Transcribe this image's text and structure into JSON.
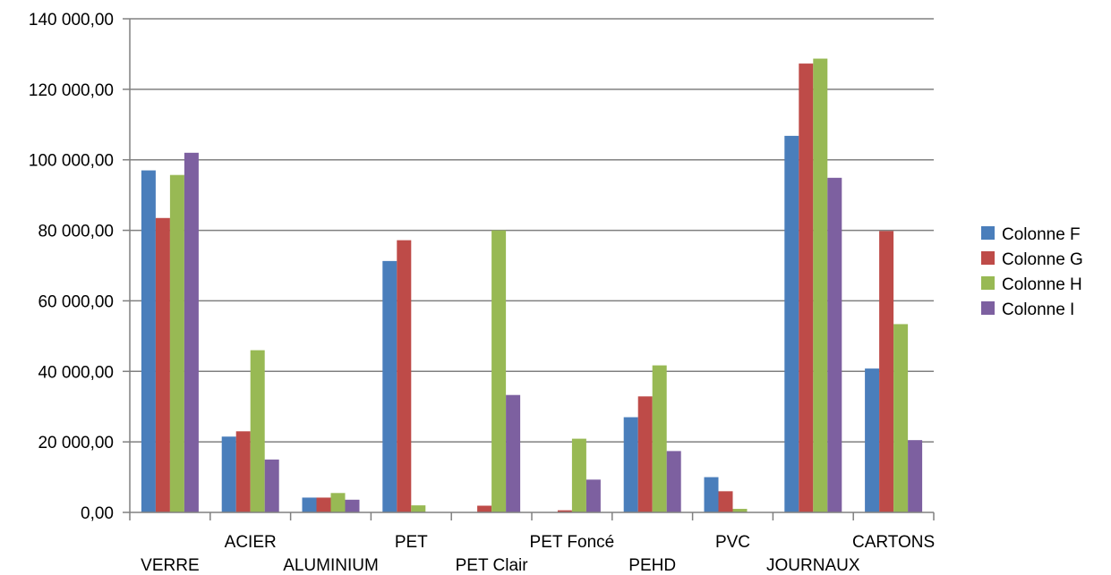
{
  "chart_data": {
    "type": "bar",
    "title": "",
    "xlabel": "",
    "ylabel": "",
    "ylim": [
      0,
      140000
    ],
    "y_ticks": [
      {
        "value": 0,
        "label": "0,00"
      },
      {
        "value": 20000,
        "label": "20 000,00"
      },
      {
        "value": 40000,
        "label": "40 000,00"
      },
      {
        "value": 60000,
        "label": "60 000,00"
      },
      {
        "value": 80000,
        "label": "80 000,00"
      },
      {
        "value": 100000,
        "label": "100 000,00"
      },
      {
        "value": 120000,
        "label": "120 000,00"
      },
      {
        "value": 140000,
        "label": "140 000,00"
      }
    ],
    "grid": true,
    "legend_position": "right",
    "categories": [
      "VERRE",
      "ACIER",
      "ALUMINIUM",
      "PET",
      "PET Clair",
      "PET Foncé",
      "PEHD",
      "PVC",
      "JOURNAUX",
      "CARTONS"
    ],
    "series": [
      {
        "name": "Colonne F",
        "color": "#4a7ebb",
        "values": [
          97000,
          21500,
          4200,
          71300,
          0,
          0,
          27000,
          10000,
          106800,
          40800
        ]
      },
      {
        "name": "Colonne G",
        "color": "#be4b48",
        "values": [
          83500,
          23000,
          4200,
          77200,
          1900,
          600,
          32900,
          6000,
          127300,
          79800
        ]
      },
      {
        "name": "Colonne H",
        "color": "#98b954",
        "values": [
          95700,
          46000,
          5500,
          2000,
          80000,
          20900,
          41700,
          1000,
          128700,
          53400
        ]
      },
      {
        "name": "Colonne I",
        "color": "#7d60a0",
        "values": [
          102000,
          15000,
          3600,
          0,
          33300,
          9300,
          17400,
          0,
          94900,
          20500
        ]
      }
    ]
  }
}
